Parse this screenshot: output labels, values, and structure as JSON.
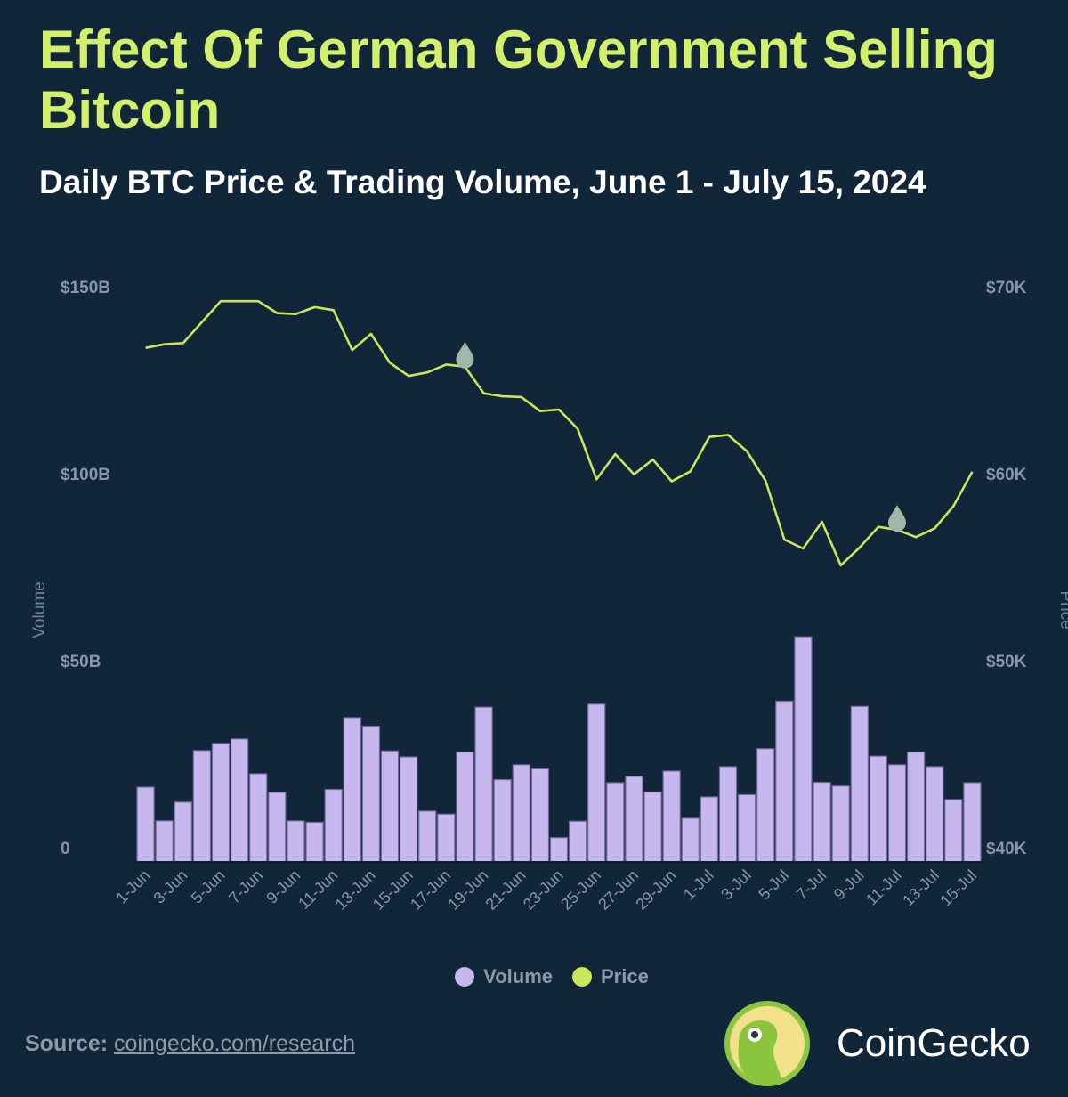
{
  "header": {
    "title": "Effect Of German Government Selling Bitcoin",
    "subtitle": "Daily BTC Price & Trading Volume, June 1 - July 15, 2024"
  },
  "chart_data": {
    "type": "bar+line",
    "title": "Effect Of German Government Selling Bitcoin",
    "subtitle": "Daily BTC Price & Trading Volume, June 1 - July 15, 2024",
    "ylabel_left": "Volume",
    "ylabel_right": "Price",
    "ylim_left": [
      0,
      150
    ],
    "ylim_right": [
      40000,
      70000
    ],
    "yticks_left": [
      "0",
      "$50B",
      "$100B",
      "$150B"
    ],
    "yticks_right": [
      "$40K",
      "$50K",
      "$60K",
      "$70K"
    ],
    "grid": false,
    "legend_position": "bottom",
    "categories": [
      "1-Jun",
      "2-Jun",
      "3-Jun",
      "4-Jun",
      "5-Jun",
      "6-Jun",
      "7-Jun",
      "8-Jun",
      "9-Jun",
      "10-Jun",
      "11-Jun",
      "12-Jun",
      "13-Jun",
      "14-Jun",
      "15-Jun",
      "16-Jun",
      "17-Jun",
      "18-Jun",
      "19-Jun",
      "20-Jun",
      "21-Jun",
      "22-Jun",
      "23-Jun",
      "24-Jun",
      "25-Jun",
      "26-Jun",
      "27-Jun",
      "28-Jun",
      "29-Jun",
      "30-Jun",
      "1-Jul",
      "2-Jul",
      "3-Jul",
      "4-Jul",
      "5-Jul",
      "6-Jul",
      "7-Jul",
      "8-Jul",
      "9-Jul",
      "10-Jul",
      "11-Jul",
      "12-Jul",
      "13-Jul",
      "14-Jul",
      "15-Jul"
    ],
    "xtick_labels": [
      "1-Jun",
      "3-Jun",
      "5-Jun",
      "7-Jun",
      "9-Jun",
      "11-Jun",
      "13-Jun",
      "15-Jun",
      "17-Jun",
      "19-Jun",
      "21-Jun",
      "23-Jun",
      "25-Jun",
      "27-Jun",
      "29-Jun",
      "1-Jul",
      "3-Jul",
      "5-Jul",
      "7-Jul",
      "9-Jul",
      "11-Jul",
      "13-Jul",
      "15-Jul"
    ],
    "series": [
      {
        "name": "Volume",
        "type": "bar",
        "axis": "left",
        "unit": "billion USD",
        "color": "#c6b7ee",
        "values": [
          20.0,
          11.0,
          16.0,
          29.8,
          31.7,
          32.9,
          23.6,
          18.6,
          11.0,
          10.6,
          19.4,
          38.6,
          36.3,
          29.7,
          28.1,
          13.6,
          12.8,
          29.4,
          41.4,
          22.0,
          26.0,
          24.9,
          6.5,
          10.9,
          42.2,
          21.2,
          22.9,
          18.7,
          24.3,
          11.7,
          17.4,
          25.5,
          18.0,
          30.3,
          43.0,
          60.2,
          21.3,
          20.3,
          41.6,
          28.3,
          26.0,
          29.4,
          25.5,
          16.7,
          21.2
        ]
      },
      {
        "name": "Price",
        "type": "line",
        "axis": "right",
        "unit": "USD",
        "color": "#c9e65c",
        "values": [
          67490,
          67680,
          67750,
          68870,
          69990,
          69990,
          69990,
          69350,
          69300,
          69670,
          69510,
          67370,
          68240,
          66700,
          65990,
          66180,
          66600,
          66490,
          65060,
          64900,
          64860,
          64110,
          64190,
          63160,
          60460,
          61810,
          60730,
          61520,
          60350,
          60890,
          62730,
          62840,
          61970,
          60380,
          57240,
          56760,
          58190,
          55860,
          56810,
          57920,
          57760,
          57370,
          57840,
          59030,
          60860
        ]
      }
    ],
    "markers": [
      {
        "category": "18-Jun",
        "series": "Price",
        "icon": "droplet-marker",
        "color": "#9fb8a8"
      },
      {
        "category": "11-Jul",
        "series": "Price",
        "icon": "droplet-marker",
        "color": "#9fb8a8"
      }
    ]
  },
  "legend": {
    "items": [
      {
        "label": "Volume",
        "color": "#c6b7ee"
      },
      {
        "label": "Price",
        "color": "#c9e65c"
      }
    ]
  },
  "footer": {
    "source_label": "Source:",
    "source_link": "coingecko.com/research",
    "brand": "CoinGecko"
  }
}
